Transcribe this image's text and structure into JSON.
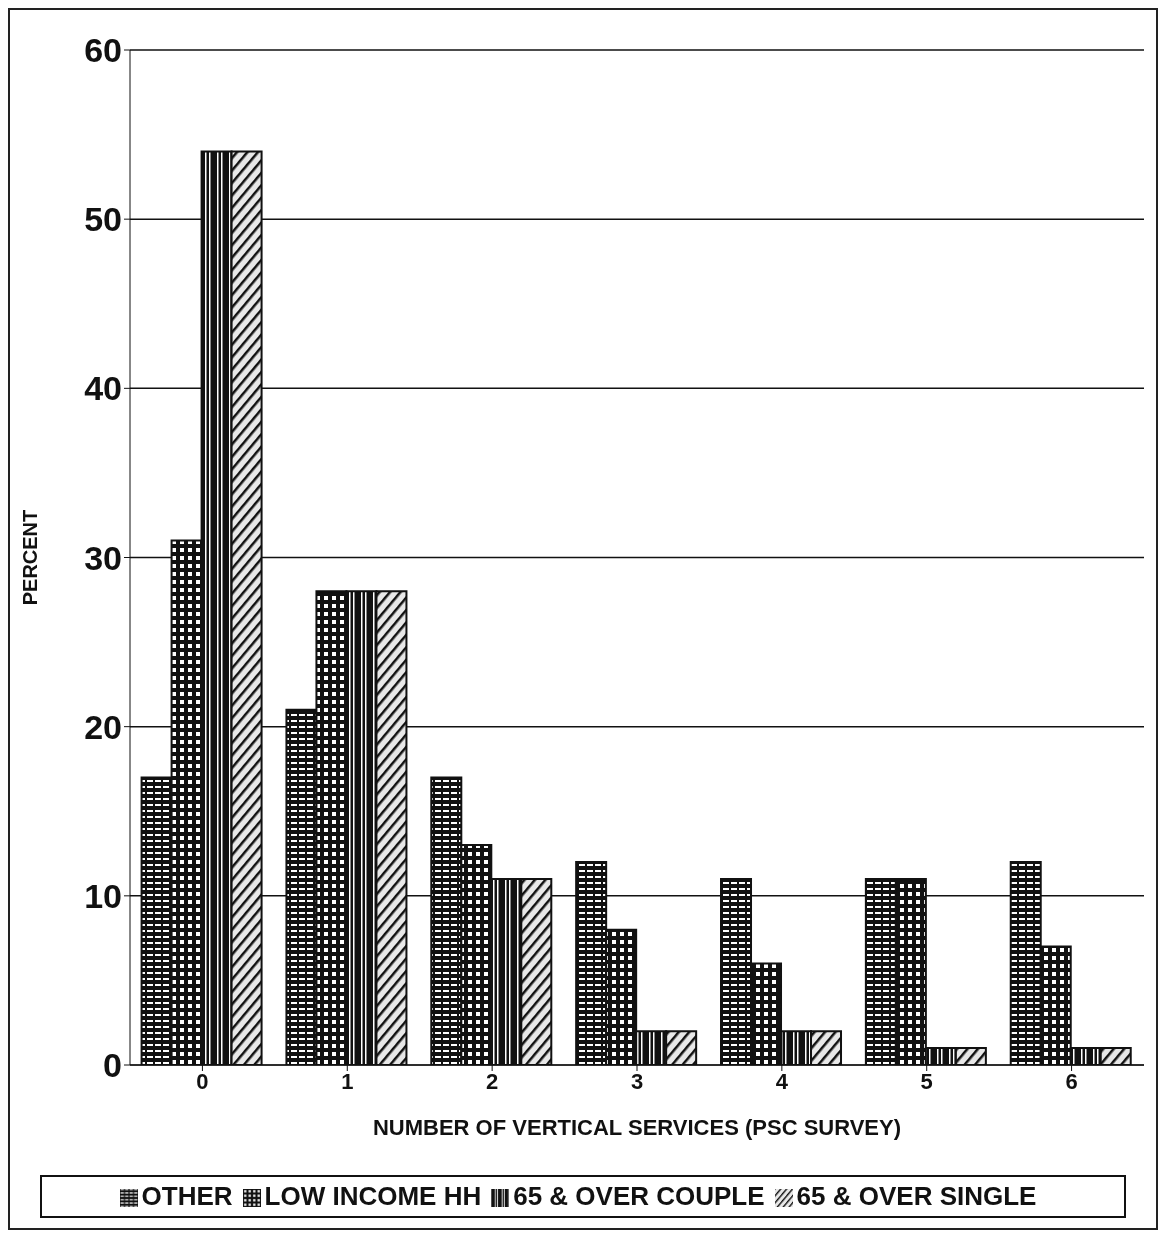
{
  "chart_data": {
    "type": "bar",
    "xlabel": "NUMBER OF VERTICAL SERVICES (PSC SURVEY)",
    "ylabel": "PERCENT",
    "categories": [
      "0",
      "1",
      "2",
      "3",
      "4",
      "5",
      "6"
    ],
    "series": [
      {
        "name": "OTHER",
        "color": "#111111",
        "values": [
          17,
          21,
          17,
          12,
          11,
          11,
          12
        ]
      },
      {
        "name": "LOW INCOME HH",
        "color": "#111111",
        "values": [
          31,
          28,
          13,
          8,
          6,
          11,
          7
        ]
      },
      {
        "name": "65 & OVER COUPLE",
        "color": "#111111",
        "values": [
          54,
          28,
          11,
          2,
          2,
          1,
          1
        ]
      },
      {
        "name": "65 & OVER SINGLE",
        "color": "#111111",
        "values": [
          54,
          28,
          11,
          2,
          2,
          1,
          1
        ]
      }
    ],
    "ylim": [
      0,
      60
    ],
    "yticks": [
      0,
      10,
      20,
      30,
      40,
      50,
      60
    ],
    "grid": "y",
    "legend": "bottom"
  }
}
